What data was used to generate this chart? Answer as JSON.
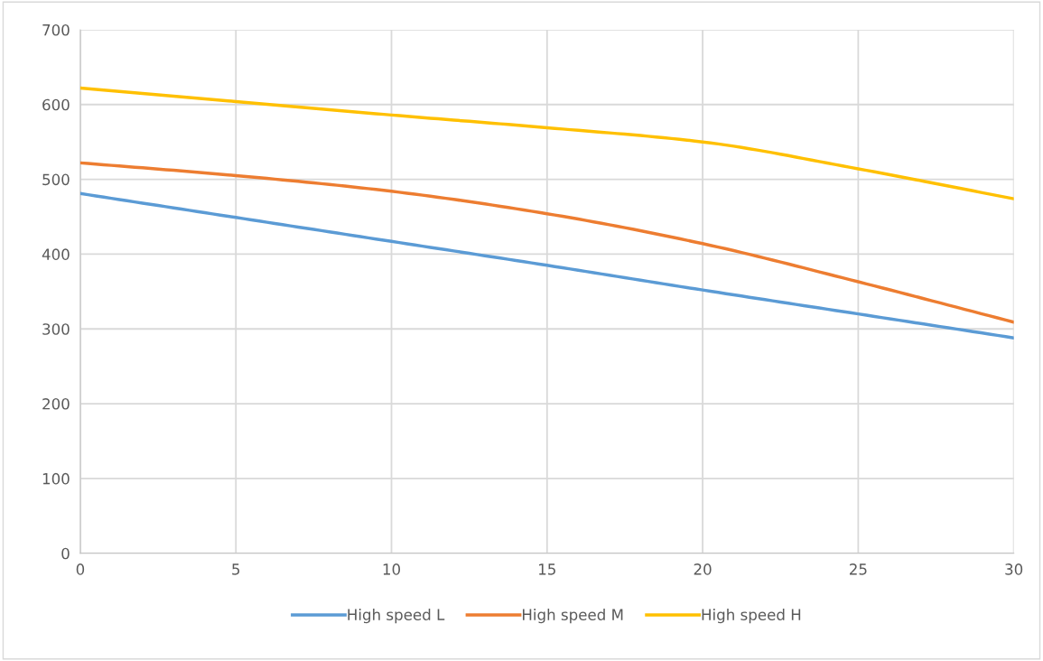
{
  "chart_data": {
    "type": "line",
    "x": [
      0,
      5,
      10,
      15,
      20,
      25,
      30
    ],
    "series": [
      {
        "name": "High speed L",
        "color": "#5b9bd5",
        "values": [
          481,
          449,
          417,
          385,
          352,
          320,
          288
        ]
      },
      {
        "name": "High speed M",
        "color": "#ed7d31",
        "values": [
          522,
          505,
          484,
          454,
          414,
          363,
          309
        ]
      },
      {
        "name": "High speed H",
        "color": "#ffc000",
        "values": [
          622,
          604,
          586,
          569,
          550,
          514,
          474
        ]
      }
    ],
    "xlim": [
      0,
      30
    ],
    "xticks": [
      0,
      5,
      10,
      15,
      20,
      25,
      30
    ],
    "ylim": [
      0,
      700
    ],
    "yticks": [
      0,
      100,
      200,
      300,
      400,
      500,
      600,
      700
    ],
    "grid": true,
    "legend": "bottom",
    "marker": "none",
    "line_style": "solid"
  }
}
